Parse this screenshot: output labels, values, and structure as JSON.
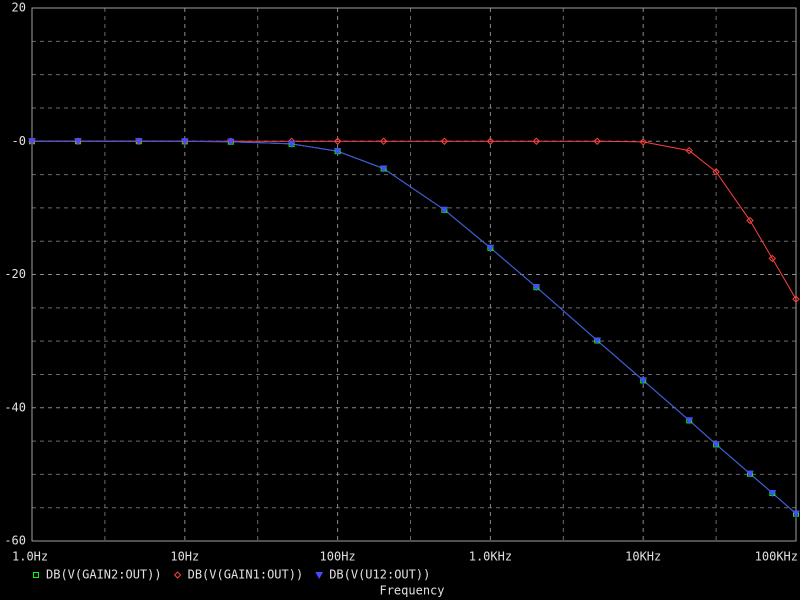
{
  "chart_data": {
    "type": "line",
    "xlabel": "Frequency",
    "xscale": "log",
    "grid": true,
    "x": [
      1,
      2,
      5,
      10,
      20,
      50,
      100,
      200,
      500,
      1000,
      2000,
      5000,
      10000,
      20000,
      30000,
      50000,
      70000,
      100000
    ],
    "series": [
      {
        "name": "DB(V(GAIN2:OUT))",
        "color": "#00ff00",
        "marker": "square",
        "values": [
          0,
          0,
          0,
          -0.02,
          -0.07,
          -0.4,
          -1.5,
          -4.1,
          -10.3,
          -16.0,
          -21.9,
          -29.9,
          -35.9,
          -41.9,
          -45.5,
          -49.9,
          -52.8,
          -55.9
        ]
      },
      {
        "name": "DB(V(GAIN1:OUT))",
        "color": "#ff4040",
        "marker": "diamond",
        "values": [
          0,
          0,
          0,
          0,
          0,
          0,
          0,
          0,
          0,
          0,
          0,
          0,
          -0.1,
          -1.4,
          -4.6,
          -11.9,
          -17.6,
          -23.7
        ]
      },
      {
        "name": "DB(V(U12:OUT))",
        "color": "#4a4aff",
        "marker": "triangle",
        "values": [
          0,
          0,
          0,
          -0.02,
          -0.07,
          -0.4,
          -1.5,
          -4.1,
          -10.3,
          -16.0,
          -21.9,
          -29.9,
          -35.9,
          -41.9,
          -45.5,
          -49.9,
          -52.8,
          -55.9
        ]
      }
    ],
    "xlim": [
      1,
      100000
    ],
    "xticks": [
      {
        "value": 1,
        "label": "1.0Hz"
      },
      {
        "value": 10,
        "label": "10Hz"
      },
      {
        "value": 100,
        "label": "100Hz"
      },
      {
        "value": 1000,
        "label": "1.0KHz"
      },
      {
        "value": 10000,
        "label": "10KHz"
      },
      {
        "value": 100000,
        "label": "100KHz"
      }
    ],
    "xminorticks": [
      3,
      30,
      300,
      3000,
      30000
    ],
    "ylim": [
      -60,
      20
    ],
    "yticks": [
      20,
      {
        "value": 0,
        "label": "-0"
      },
      -20,
      -40,
      -60
    ],
    "yminorticks": [
      15,
      10,
      5,
      -5,
      -10,
      -15,
      -25,
      -30,
      -35,
      -45,
      -50,
      -55
    ]
  }
}
